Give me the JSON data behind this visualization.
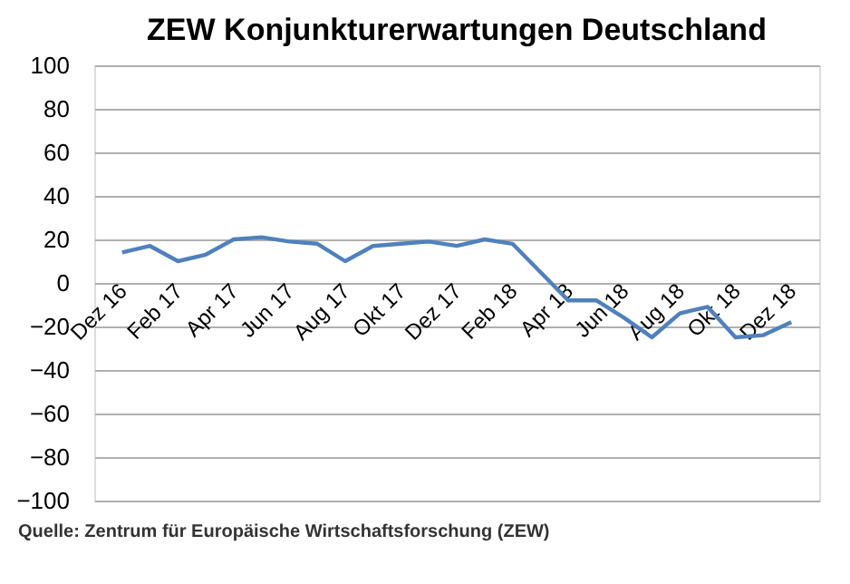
{
  "chart_data": {
    "type": "line",
    "title": "ZEW Konjunkturerwartungen Deutschland",
    "categories": [
      "Dez 16",
      null,
      "Feb 17",
      null,
      "Apr 17",
      null,
      "Jun 17",
      null,
      "Aug 17",
      null,
      "Okt 17",
      null,
      "Dez 17",
      null,
      "Feb 18",
      null,
      "Apr 18",
      null,
      "Jun 18",
      null,
      "Aug 18",
      null,
      "Okt 18",
      null,
      "Dez 18"
    ],
    "series": [
      {
        "color": "#4f81bd",
        "values": [
          14,
          17,
          10,
          13,
          20,
          21,
          19,
          18,
          10,
          17,
          18,
          19,
          17,
          20,
          18,
          5,
          -8,
          -8,
          -16,
          -25,
          -14,
          -11,
          -25,
          -24,
          -18
        ]
      }
    ],
    "ylim": [
      -100,
      100
    ],
    "yticks": [
      -100,
      -80,
      -60,
      -40,
      -20,
      0,
      20,
      40,
      60,
      80,
      100
    ],
    "grid": "y",
    "marker": "none",
    "line_style": "solid",
    "annotations": [
      "Quelle: Zentrum für Europäische Wirtschaftsforschung (ZEW)"
    ]
  }
}
